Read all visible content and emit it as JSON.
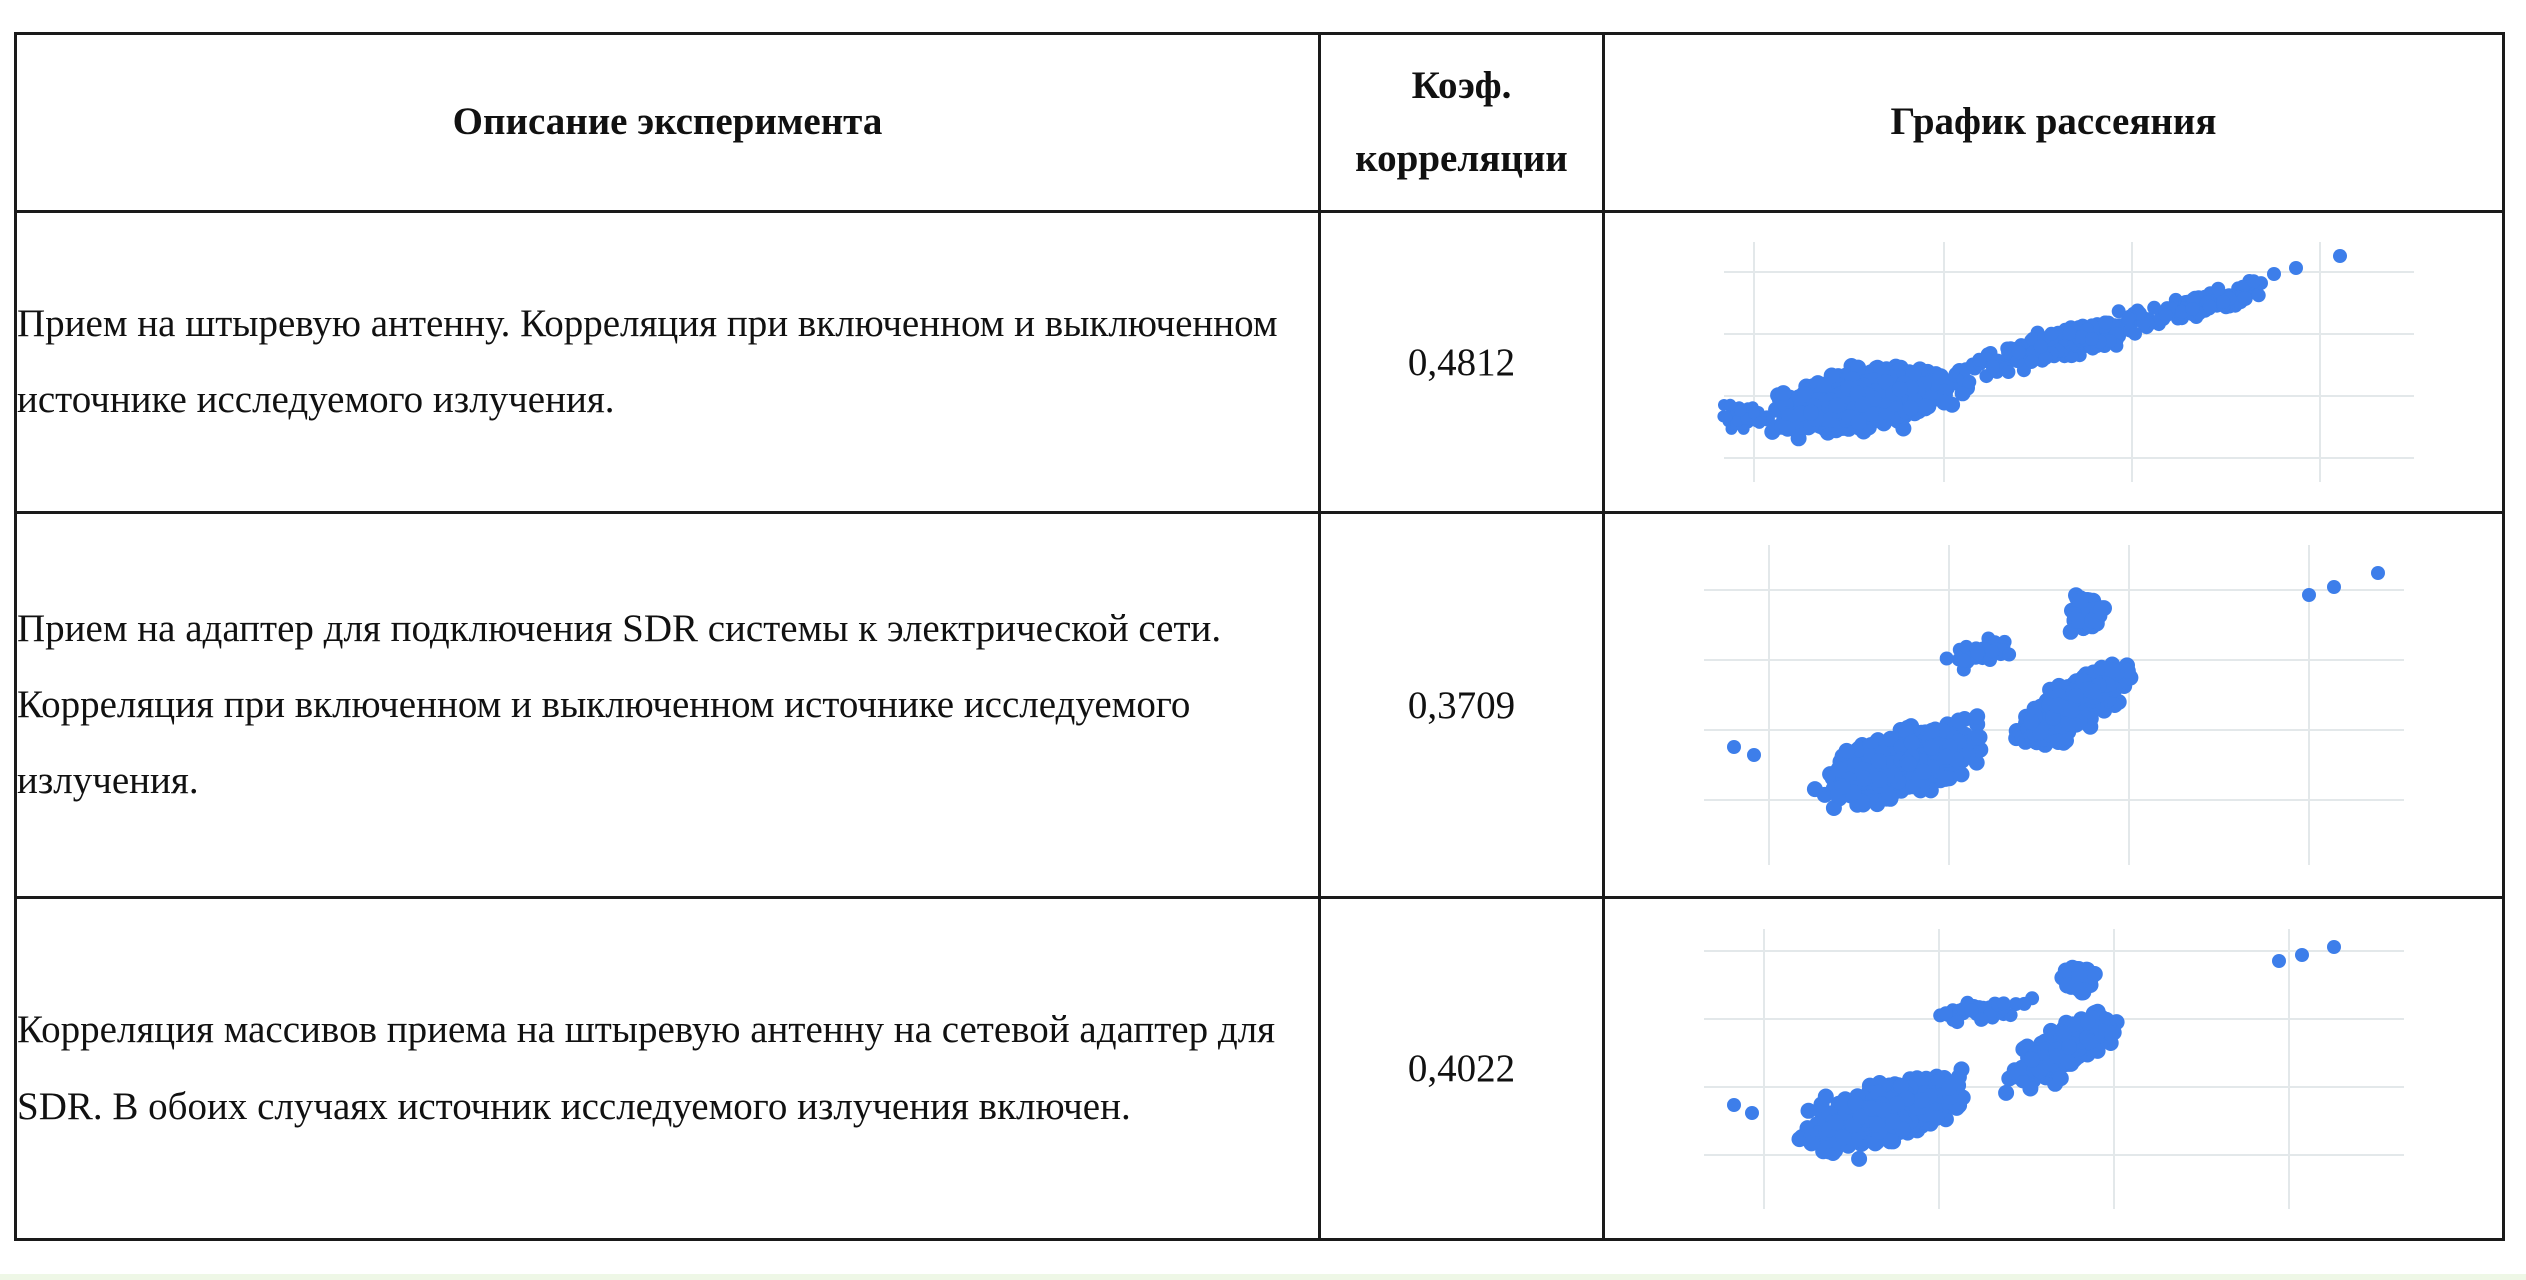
{
  "table": {
    "headers": {
      "description": "Описание эксперимента",
      "coefficient": "Коэф. корреляции",
      "plot": "График рассеяния"
    },
    "rows": [
      {
        "description": "Прием на штыревую антенну. Корреляция при включенном и выключенном источнике исследуемого излучения.",
        "coefficient": "0,4812"
      },
      {
        "description": "Прием на адаптер для подключения SDR системы к электрической сети. Корреляция при включенном и выключенном источнике исследуемого излучения.",
        "coefficient": "0,3709"
      },
      {
        "description": "Корреляция массивов приема на штыревую антенну на сетевой адаптер для SDR. В обоих случаях источник исследуемого излучения включен.",
        "coefficient": "0,4022"
      }
    ]
  },
  "colors": {
    "point": "#3d7eea",
    "grid": "#e3e8ea",
    "border": "#1a1a1a",
    "bottom_band": "#eef7e6"
  }
}
